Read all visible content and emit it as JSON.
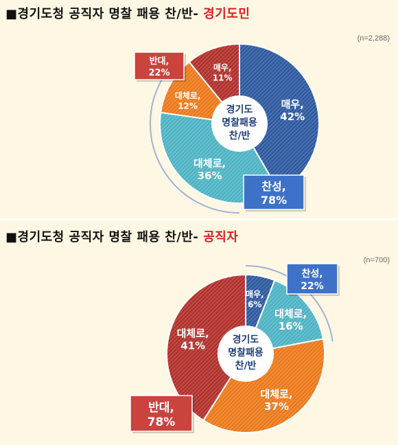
{
  "chart_data": [
    {
      "type": "pie",
      "title_prefix": "■경기도청 공직자 명찰 패용 찬/반- ",
      "title_accent": "경기도민",
      "n_label": "(n=2,288)",
      "center_label": [
        "경기도",
        "명찰패용",
        "찬/반"
      ],
      "slices": [
        {
          "label": "매우,",
          "value": 42,
          "value_text": "42%",
          "color": "#2f5aa0"
        },
        {
          "label": "대체로,",
          "value": 36,
          "value_text": "36%",
          "color": "#4fb4c4"
        },
        {
          "label": "대체로,",
          "value": 12,
          "value_text": "12%",
          "color": "#ec7a1c"
        },
        {
          "label": "매우,",
          "value": 11,
          "value_text": "11%",
          "color": "#b2312c"
        }
      ],
      "summary_boxes": [
        {
          "label": "찬성,",
          "value_text": "78%",
          "color": "#3e72c8"
        },
        {
          "label": "반대,",
          "value_text": "22%",
          "color": "#cb433d"
        }
      ]
    },
    {
      "type": "pie",
      "title_prefix": "■경기도청 공직자 명찰 패용 찬/반- ",
      "title_accent": "공직자",
      "n_label": "(n=700)",
      "center_label": [
        "경기도",
        "명찰패용",
        "찬/반"
      ],
      "slices": [
        {
          "label": "매우,",
          "value": 6,
          "value_text": "6%",
          "color": "#2f5aa0"
        },
        {
          "label": "대체로,",
          "value": 16,
          "value_text": "16%",
          "color": "#4fb4c4"
        },
        {
          "label": "대체로,",
          "value": 37,
          "value_text": "37%",
          "color": "#ec7a1c"
        },
        {
          "label": "대체로,",
          "value": 41,
          "value_text": "41%",
          "color": "#b2312c"
        }
      ],
      "summary_boxes": [
        {
          "label": "찬성,",
          "value_text": "22%",
          "color": "#3e72c8"
        },
        {
          "label": "반대,",
          "value_text": "78%",
          "color": "#cb433d"
        }
      ]
    }
  ]
}
